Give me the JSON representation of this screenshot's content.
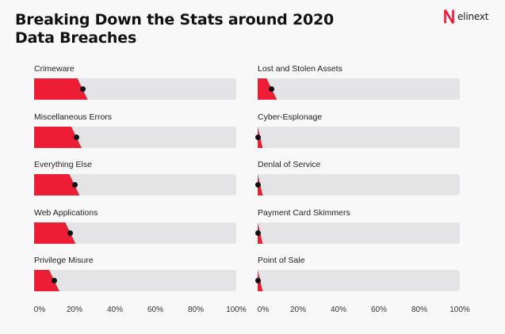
{
  "title": "Breaking Down the Stats around 2020 Data Breaches",
  "logo": {
    "text": "elinext",
    "icon": "elinext-logo-icon",
    "color": "#ee1d36"
  },
  "colors": {
    "fill": "#ee1d36",
    "track": "#e4e4e6",
    "marker": "#111111"
  },
  "chart_data": [
    {
      "type": "bar",
      "orientation": "horizontal",
      "title": "",
      "categories": [
        "Crimeware",
        "Miscellaneous Errors",
        "Everything Else",
        "Web Applications",
        "Privilege Misure"
      ],
      "values": [
        24,
        21,
        20,
        18,
        10
      ],
      "xlim": [
        0,
        100
      ],
      "xticks": [
        "0%",
        "20%",
        "40%",
        "60%",
        "80%",
        "100%"
      ],
      "grid": false,
      "legend": "none"
    },
    {
      "type": "bar",
      "orientation": "horizontal",
      "title": "",
      "categories": [
        "Lost and Stolen Assets",
        "Cyber-Esplonage",
        "Denlal of Service",
        "Payment Card Skimmers",
        "Point of Sale"
      ],
      "values": [
        7,
        0,
        0,
        0,
        0
      ],
      "xlim": [
        0,
        100
      ],
      "xticks": [
        "0%",
        "20%",
        "40%",
        "60%",
        "80%",
        "100%"
      ],
      "grid": false,
      "legend": "none"
    }
  ]
}
